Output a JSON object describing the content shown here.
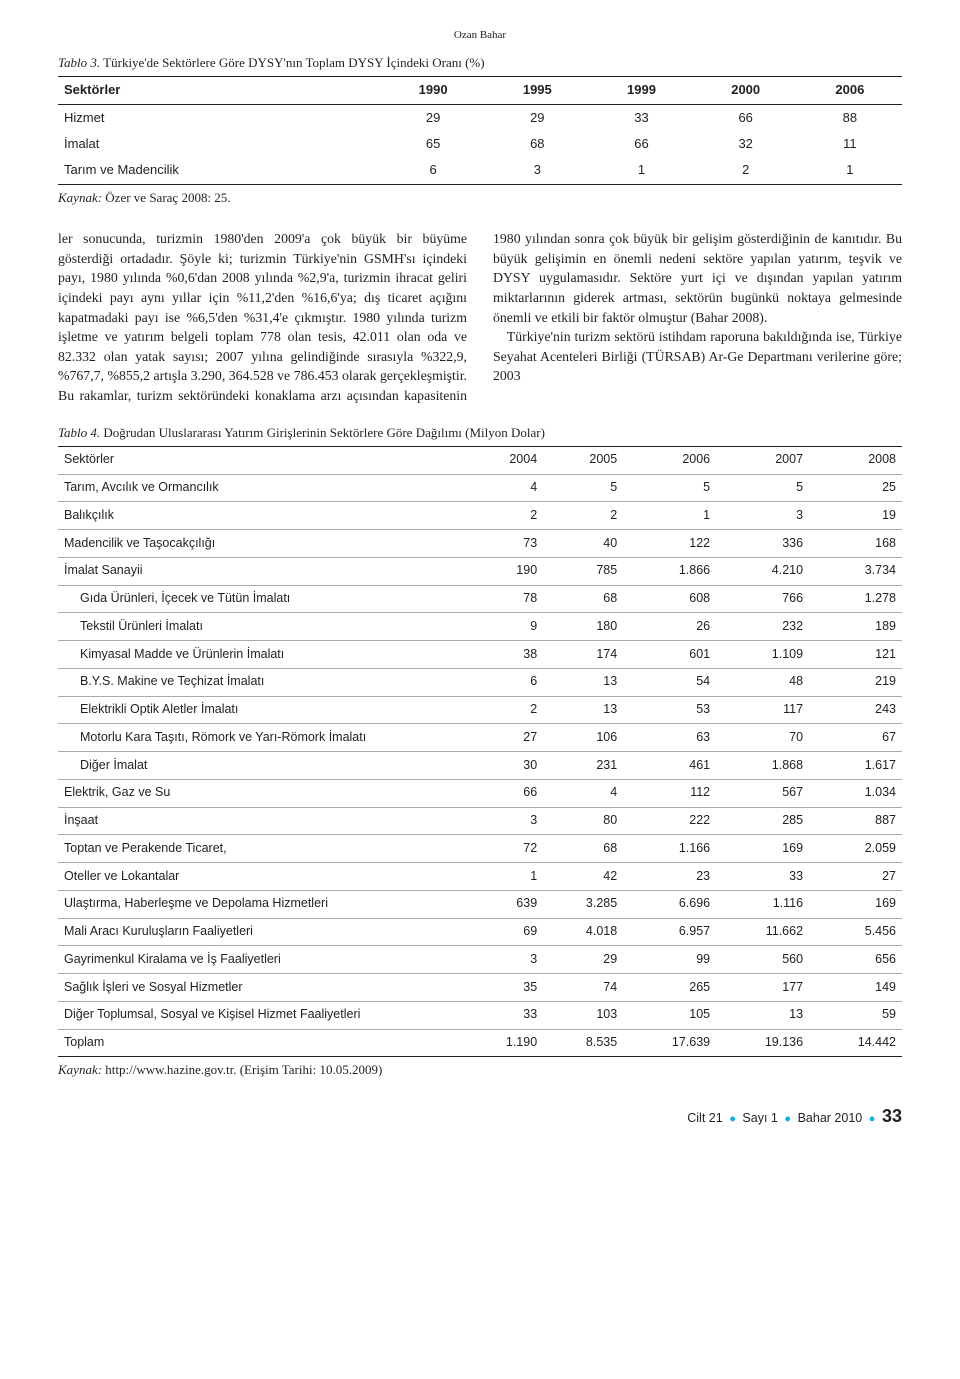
{
  "author_header": "Ozan Bahar",
  "table3": {
    "caption_label": "Tablo 3.",
    "caption_text": "Türkiye'de Sektörlere Göre DYSY'nın Toplam DYSY İçindeki Oranı (%)",
    "headers": [
      "Sektörler",
      "1990",
      "1995",
      "1999",
      "2000",
      "2006"
    ],
    "rows": [
      [
        "Hizmet",
        "29",
        "29",
        "33",
        "66",
        "88"
      ],
      [
        "İmalat",
        "65",
        "68",
        "66",
        "32",
        "11"
      ],
      [
        "Tarım ve Madencilik",
        "6",
        "3",
        "1",
        "2",
        "1"
      ]
    ],
    "source_label": "Kaynak:",
    "source_text": "Özer ve Saraç 2008: 25."
  },
  "body_text": "ler sonucunda, turizmin 1980'den 2009'a çok büyük bir büyüme gösterdiği ortadadır. Şöyle ki; turizmin Türkiye'nin GSMH'sı içindeki payı, 1980 yılında %0,6'dan 2008 yılında %2,9'a, turizmin ihracat geliri içindeki payı aynı yıllar için %11,2'den %16,6'ya; dış ticaret açığını kapatmadaki payı ise %6,5'den %31,4'e çıkmıştır. 1980 yılında turizm işletme ve yatırım belgeli toplam 778 olan tesis, 42.011 olan oda ve 82.332 olan yatak sayısı; 2007 yılına gelindiğinde sırasıyla %322,9, %767,7, %855,2 artışla 3.290, 364.528 ve 786.453 olarak gerçekleşmiştir. Bu rakamlar, turizm sektöründeki konaklama arzı açısından kapasitenin 1980 yılından sonra çok büyük bir gelişim gösterdiğinin de kanıtıdır. Bu büyük gelişimin en önemli nedeni sektöre yapılan yatırım, teşvik ve DYSY uygulamasıdır. Sektöre yurt içi ve dışından yapılan yatırım miktarlarının giderek artması, sektörün bugünkü noktaya gelmesinde önemli ve etkili bir faktör olmuştur (Bahar 2008).\n Türkiye'nin turizm sektörü istihdam raporuna bakıldığında ise, Türkiye Seyahat Acenteleri Birliği (TÜRSAB) Ar-Ge Departmanı verilerine göre; 2003",
  "table4": {
    "caption_label": "Tablo 4.",
    "caption_text": "Doğrudan Uluslararası Yatırım Girişlerinin Sektörlere Göre Dağılımı (Milyon Dolar)",
    "headers": [
      "Sektörler",
      "2004",
      "2005",
      "2006",
      "2007",
      "2008"
    ],
    "rows": [
      {
        "cells": [
          "Tarım, Avcılık ve Ormancılık",
          "4",
          "5",
          "5",
          "5",
          "25"
        ],
        "indent": false
      },
      {
        "cells": [
          "Balıkçılık",
          "2",
          "2",
          "1",
          "3",
          "19"
        ],
        "indent": false
      },
      {
        "cells": [
          "Madencilik ve Taşocakçılığı",
          "73",
          "40",
          "122",
          "336",
          "168"
        ],
        "indent": false
      },
      {
        "cells": [
          "İmalat Sanayii",
          "190",
          "785",
          "1.866",
          "4.210",
          "3.734"
        ],
        "indent": false
      },
      {
        "cells": [
          "Gıda Ürünleri, İçecek ve Tütün İmalatı",
          "78",
          "68",
          "608",
          "766",
          "1.278"
        ],
        "indent": true
      },
      {
        "cells": [
          "Tekstil Ürünleri İmalatı",
          "9",
          "180",
          "26",
          "232",
          "189"
        ],
        "indent": true
      },
      {
        "cells": [
          "Kimyasal Madde ve Ürünlerin İmalatı",
          "38",
          "174",
          "601",
          "1.109",
          "121"
        ],
        "indent": true
      },
      {
        "cells": [
          "B.Y.S. Makine ve Teçhizat İmalatı",
          "6",
          "13",
          "54",
          "48",
          "219"
        ],
        "indent": true
      },
      {
        "cells": [
          "Elektrikli Optik Aletler İmalatı",
          "2",
          "13",
          "53",
          "117",
          "243"
        ],
        "indent": true
      },
      {
        "cells": [
          "Motorlu Kara Taşıtı, Römork ve Yarı-Römork İmalatı",
          "27",
          "106",
          "63",
          "70",
          "67"
        ],
        "indent": true
      },
      {
        "cells": [
          "Diğer İmalat",
          "30",
          "231",
          "461",
          "1.868",
          "1.617"
        ],
        "indent": true
      },
      {
        "cells": [
          "Elektrik, Gaz ve Su",
          "66",
          "4",
          "112",
          "567",
          "1.034"
        ],
        "indent": false
      },
      {
        "cells": [
          "İnşaat",
          "3",
          "80",
          "222",
          "285",
          "887"
        ],
        "indent": false
      },
      {
        "cells": [
          "Toptan ve Perakende Ticaret,",
          "72",
          "68",
          "1.166",
          "169",
          "2.059"
        ],
        "indent": false
      },
      {
        "cells": [
          "Oteller ve Lokantalar",
          "1",
          "42",
          "23",
          "33",
          "27"
        ],
        "indent": false
      },
      {
        "cells": [
          "Ulaştırma, Haberleşme ve Depolama Hizmetleri",
          "639",
          "3.285",
          "6.696",
          "1.116",
          "169"
        ],
        "indent": false
      },
      {
        "cells": [
          "Mali Aracı Kuruluşların Faaliyetleri",
          "69",
          "4.018",
          "6.957",
          "11.662",
          "5.456"
        ],
        "indent": false
      },
      {
        "cells": [
          "Gayrimenkul Kiralama ve İş Faaliyetleri",
          "3",
          "29",
          "99",
          "560",
          "656"
        ],
        "indent": false
      },
      {
        "cells": [
          "Sağlık İşleri ve Sosyal Hizmetler",
          "35",
          "74",
          "265",
          "177",
          "149"
        ],
        "indent": false
      },
      {
        "cells": [
          "Diğer Toplumsal, Sosyal ve Kişisel Hizmet Faaliyetleri",
          "33",
          "103",
          "105",
          "13",
          "59"
        ],
        "indent": false
      },
      {
        "cells": [
          "Toplam",
          "1.190",
          "8.535",
          "17.639",
          "19.136",
          "14.442"
        ],
        "indent": false
      }
    ],
    "source_label": "Kaynak:",
    "source_text": "http://www.hazine.gov.tr. (Erişim Tarihi: 10.05.2009)"
  },
  "footer": {
    "volume": "Cilt  21",
    "issue": "Sayı  1",
    "season": "Bahar 2010",
    "page": "33"
  }
}
